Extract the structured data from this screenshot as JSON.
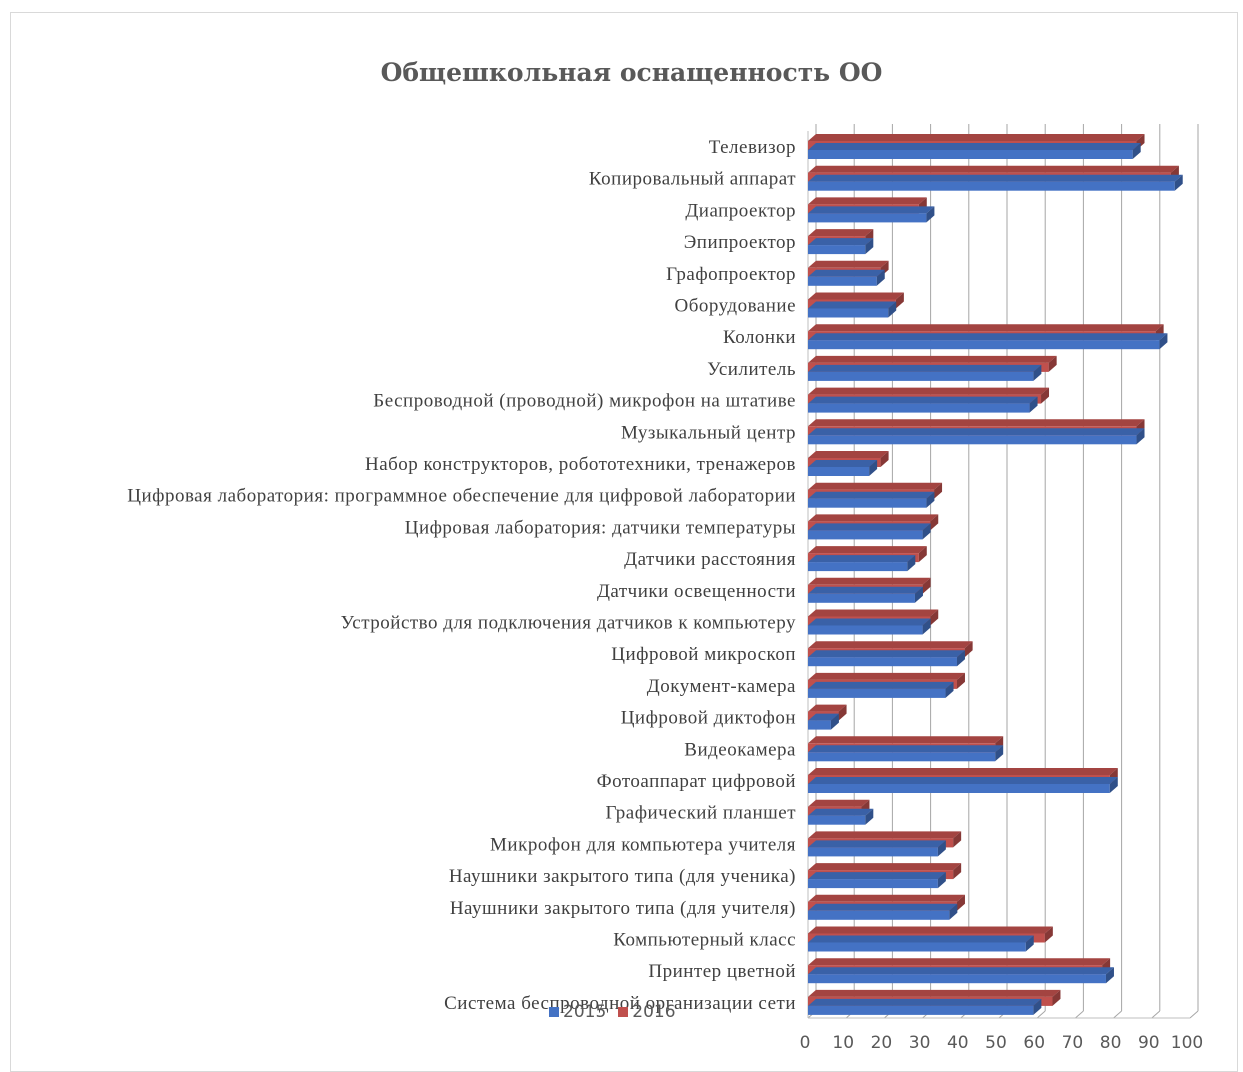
{
  "chart_data": {
    "type": "bar",
    "orientation": "horizontal",
    "style": "3d-clustered",
    "title": "Общешкольная оснащенность ОО",
    "categories": [
      "Телевизор",
      "Копировальный аппарат",
      "Диапроектор",
      "Эпипроектор",
      "Графопроектор",
      "Оборудование ",
      "Колонки",
      "Усилитель",
      "Беспроводной (проводной) микрофон на штативе",
      "Музыкальный центр",
      "Набор конструкторов, робототехники, тренажеров",
      "Цифровая лаборатория: программное обеспечение для цифровой лаборатории",
      "Цифровая лаборатория: датчики температуры",
      "Датчики расстояния",
      "Датчики освещенности",
      "Устройство для подключения датчиков к компьютеру ",
      "Цифровой микроскоп",
      "Документ-камера",
      "Цифровой диктофон",
      "Видеокамера",
      "Фотоаппарат цифровой ",
      "Графический планшет",
      "Микрофон для компьютера учителя",
      "Наушники закрытого типа (для ученика)",
      "Наушники закрытого типа (для учителя) ",
      "Компьютерный класс ",
      "Принтер цветной",
      "Система беспроводной организации сети"
    ],
    "series": [
      {
        "name": "2015",
        "color": "#4472c4",
        "values": [
          85,
          96,
          31,
          15,
          18,
          21,
          92,
          59,
          58,
          86,
          16,
          31,
          30,
          26,
          28,
          30,
          39,
          36,
          6,
          49,
          79,
          15,
          34,
          34,
          37,
          57,
          78,
          59
        ]
      },
      {
        "name": "2016",
        "color": "#c0504d",
        "values": [
          86,
          95,
          29,
          15,
          19,
          23,
          91,
          63,
          61,
          86,
          19,
          33,
          32,
          29,
          30,
          32,
          41,
          39,
          8,
          49,
          79,
          14,
          38,
          38,
          39,
          62,
          77,
          64
        ]
      }
    ],
    "xlim": [
      0,
      100
    ],
    "xticks": [
      "0",
      "10",
      "20",
      "30",
      "40",
      "50",
      "60",
      "70",
      "80",
      "90",
      "100"
    ],
    "grid": true,
    "legend_position": "bottom"
  }
}
